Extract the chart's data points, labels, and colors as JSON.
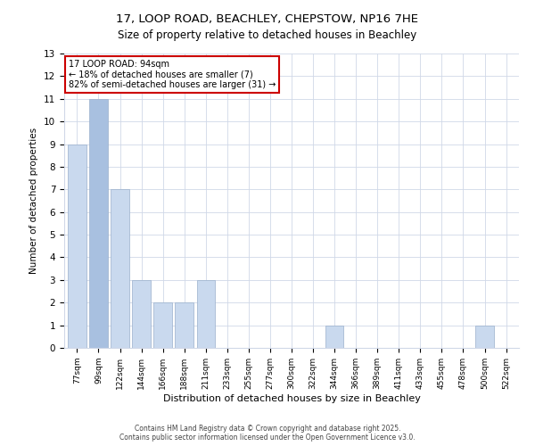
{
  "title": "17, LOOP ROAD, BEACHLEY, CHEPSTOW, NP16 7HE",
  "subtitle": "Size of property relative to detached houses in Beachley",
  "xlabel": "Distribution of detached houses by size in Beachley",
  "ylabel": "Number of detached properties",
  "categories": [
    "77sqm",
    "99sqm",
    "122sqm",
    "144sqm",
    "166sqm",
    "188sqm",
    "211sqm",
    "233sqm",
    "255sqm",
    "277sqm",
    "300sqm",
    "322sqm",
    "344sqm",
    "366sqm",
    "389sqm",
    "411sqm",
    "433sqm",
    "455sqm",
    "478sqm",
    "500sqm",
    "522sqm"
  ],
  "values": [
    9,
    11,
    7,
    3,
    2,
    2,
    3,
    0,
    0,
    0,
    0,
    0,
    1,
    0,
    0,
    0,
    0,
    0,
    0,
    1,
    0
  ],
  "bar_color_default": "#c9d9ee",
  "bar_color_highlight": "#a8c0e0",
  "highlight_index": 1,
  "ylim": [
    0,
    13
  ],
  "yticks": [
    0,
    1,
    2,
    3,
    4,
    5,
    6,
    7,
    8,
    9,
    10,
    11,
    12,
    13
  ],
  "annotation_text": "17 LOOP ROAD: 94sqm\n← 18% of detached houses are smaller (7)\n82% of semi-detached houses are larger (31) →",
  "annotation_box_color": "#ffffff",
  "annotation_box_edgecolor": "#cc0000",
  "footer_line1": "Contains HM Land Registry data © Crown copyright and database right 2025.",
  "footer_line2": "Contains public sector information licensed under the Open Government Licence v3.0.",
  "bg_color": "#ffffff",
  "grid_color": "#d0d8e8",
  "title_fontsize": 9.5,
  "bar_width": 0.85
}
